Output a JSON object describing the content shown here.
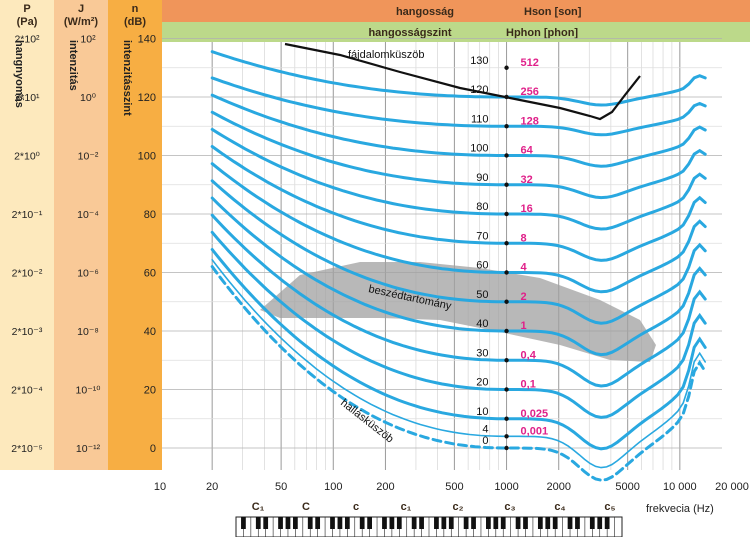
{
  "header": {
    "col_p_label": "P",
    "col_p_unit": "(Pa)",
    "col_j_label": "J",
    "col_j_unit": "(W/m²)",
    "col_n_label": "n",
    "col_n_unit": "(dB)",
    "row1_label": "hangosság",
    "row1_symbol": "Hson [son]",
    "row2_label": "hangosságszint",
    "row2_symbol": "Hphon [phon]"
  },
  "side_labels": {
    "pressure": "hangnyomás",
    "intensity": "intenzitás",
    "level": "intenzitásszint"
  },
  "chart_data": {
    "type": "line",
    "xlabel": "frekvecia (Hz)",
    "ylabel": "intenzitásszint",
    "xscale": "log",
    "xlim": [
      10,
      20000
    ],
    "ylim": [
      -10,
      140
    ],
    "x_ticks": [
      "10",
      "20",
      "50",
      "100",
      "200",
      "500",
      "1000",
      "2000",
      "5000",
      "10 000",
      "20 000"
    ],
    "y_ticks": [
      "0",
      "20",
      "40",
      "60",
      "80",
      "100",
      "120",
      "140"
    ],
    "pressure_ticks": [
      "2*10²",
      "2*10¹",
      "2*10⁰",
      "2*10⁻¹",
      "2*10⁻²",
      "2*10⁻³",
      "2*10⁻⁴",
      "2*10⁻⁵"
    ],
    "intensity_ticks": [
      "10²",
      "10⁰",
      "10⁻²",
      "10⁻⁴",
      "10⁻⁶",
      "10⁻⁸",
      "10⁻¹⁰",
      "10⁻¹²"
    ],
    "phon_labels": [
      "130",
      "120",
      "110",
      "100",
      "90",
      "80",
      "70",
      "60",
      "50",
      "40",
      "30",
      "20",
      "10",
      "4",
      "0"
    ],
    "son_labels": [
      "512",
      "256",
      "128",
      "64",
      "32",
      "16",
      "8",
      "4",
      "2",
      "1",
      "0,4",
      "0,1",
      "0,025",
      "0,001"
    ],
    "curve_labels": {
      "pain": "fájdalomküszöb",
      "speech": "beszédtartomány",
      "hearing": "hallásküszöb"
    },
    "note_labels": [
      "C₁",
      "C",
      "c",
      "c₁",
      "c₂",
      "c₃",
      "c₄",
      "c₅"
    ],
    "phon_levels": [
      130,
      120,
      110,
      100,
      90,
      80,
      70,
      60,
      50,
      40,
      30,
      20,
      10,
      4,
      0
    ],
    "colors": {
      "curve": "#29a8e0",
      "pain": "#111111",
      "speech": "#a0a0a0",
      "band_p": "#fde9bd",
      "band_j": "#f9c997",
      "band_n": "#f7ae43",
      "header1": "#f0955a",
      "header2": "#bcd98a",
      "magenta": "#e0218a"
    }
  }
}
